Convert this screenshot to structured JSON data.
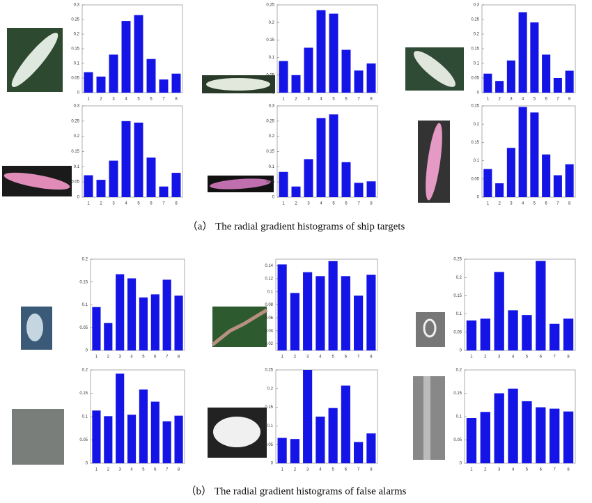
{
  "chart_data": [
    {
      "type": "bar",
      "categories": [
        "1",
        "2",
        "3",
        "4",
        "5",
        "6",
        "7",
        "8"
      ],
      "values": [
        0.07,
        0.055,
        0.13,
        0.245,
        0.265,
        0.115,
        0.045,
        0.065
      ],
      "color": "#1414e6",
      "ylim": [
        0,
        0.3
      ],
      "yticks": [
        0,
        0.05,
        0.1,
        0.15,
        0.2,
        0.25,
        0.3
      ]
    },
    {
      "type": "bar",
      "categories": [
        "1",
        "2",
        "3",
        "4",
        "5",
        "6",
        "7",
        "8"
      ],
      "values": [
        0.09,
        0.05,
        0.128,
        0.235,
        0.225,
        0.122,
        0.063,
        0.083
      ],
      "color": "#1414e6",
      "ylim": [
        0,
        0.25
      ],
      "yticks": [
        0,
        0.05,
        0.1,
        0.15,
        0.2,
        0.25
      ]
    },
    {
      "type": "bar",
      "categories": [
        "1",
        "2",
        "3",
        "4",
        "5",
        "6",
        "7",
        "8"
      ],
      "values": [
        0.065,
        0.04,
        0.11,
        0.275,
        0.24,
        0.13,
        0.05,
        0.075
      ],
      "color": "#1414e6",
      "ylim": [
        0,
        0.3
      ],
      "yticks": [
        0,
        0.05,
        0.1,
        0.15,
        0.2,
        0.25,
        0.3
      ]
    },
    {
      "type": "bar",
      "categories": [
        "1",
        "2",
        "3",
        "4",
        "5",
        "6",
        "7",
        "8"
      ],
      "values": [
        0.072,
        0.057,
        0.12,
        0.25,
        0.245,
        0.13,
        0.035,
        0.08
      ],
      "color": "#1414e6",
      "ylim": [
        0,
        0.3
      ],
      "yticks": [
        0,
        0.05,
        0.1,
        0.15,
        0.2,
        0.25,
        0.3
      ]
    },
    {
      "type": "bar",
      "categories": [
        "1",
        "2",
        "3",
        "4",
        "5",
        "6",
        "7",
        "8"
      ],
      "values": [
        0.083,
        0.035,
        0.125,
        0.26,
        0.272,
        0.115,
        0.047,
        0.052
      ],
      "color": "#1414e6",
      "ylim": [
        0,
        0.3
      ],
      "yticks": [
        0,
        0.05,
        0.1,
        0.15,
        0.2,
        0.25,
        0.3
      ]
    },
    {
      "type": "bar",
      "categories": [
        "1",
        "2",
        "3",
        "4",
        "5",
        "6",
        "7",
        "8"
      ],
      "values": [
        0.077,
        0.038,
        0.135,
        0.247,
        0.232,
        0.117,
        0.06,
        0.09
      ],
      "color": "#1414e6",
      "ylim": [
        0,
        0.25
      ],
      "yticks": [
        0,
        0.05,
        0.1,
        0.15,
        0.2,
        0.25
      ]
    },
    {
      "type": "bar",
      "categories": [
        "1",
        "2",
        "3",
        "4",
        "5",
        "6",
        "7",
        "8"
      ],
      "values": [
        0.095,
        0.06,
        0.167,
        0.158,
        0.116,
        0.123,
        0.155,
        0.12
      ],
      "color": "#1414e6",
      "ylim": [
        0,
        0.2
      ],
      "yticks": [
        0,
        0.05,
        0.1,
        0.15,
        0.2
      ]
    },
    {
      "type": "bar",
      "categories": [
        "1",
        "2",
        "3",
        "4",
        "5",
        "6",
        "7",
        "8"
      ],
      "values": [
        0.142,
        0.098,
        0.13,
        0.124,
        0.147,
        0.124,
        0.094,
        0.126
      ],
      "color": "#1414e6",
      "ylim": [
        0.01,
        0.15
      ],
      "yticks": [
        0.02,
        0.04,
        0.06,
        0.08,
        0.1,
        0.12,
        0.14
      ]
    },
    {
      "type": "bar",
      "categories": [
        "1",
        "2",
        "3",
        "4",
        "5",
        "6",
        "7",
        "8"
      ],
      "values": [
        0.082,
        0.087,
        0.215,
        0.11,
        0.097,
        0.245,
        0.073,
        0.087
      ],
      "color": "#1414e6",
      "ylim": [
        0,
        0.25
      ],
      "yticks": [
        0,
        0.05,
        0.1,
        0.15,
        0.2,
        0.25
      ]
    },
    {
      "type": "bar",
      "categories": [
        "1",
        "2",
        "3",
        "4",
        "5",
        "6",
        "7",
        "8"
      ],
      "values": [
        0.113,
        0.101,
        0.192,
        0.104,
        0.158,
        0.132,
        0.09,
        0.102
      ],
      "color": "#1414e6",
      "ylim": [
        0,
        0.2
      ],
      "yticks": [
        0,
        0.05,
        0.1,
        0.15,
        0.2
      ]
    },
    {
      "type": "bar",
      "categories": [
        "1",
        "2",
        "3",
        "4",
        "5",
        "6",
        "7",
        "8"
      ],
      "values": [
        0.068,
        0.065,
        0.25,
        0.125,
        0.148,
        0.208,
        0.057,
        0.08
      ],
      "color": "#1414e6",
      "ylim": [
        0,
        0.25
      ],
      "yticks": [
        0,
        0.05,
        0.1,
        0.15,
        0.2,
        0.25
      ]
    },
    {
      "type": "bar",
      "categories": [
        "1",
        "2",
        "3",
        "4",
        "5",
        "6",
        "7",
        "8"
      ],
      "values": [
        0.097,
        0.11,
        0.15,
        0.16,
        0.133,
        0.12,
        0.117,
        0.111
      ],
      "color": "#1414e6",
      "ylim": [
        0,
        0.2
      ],
      "yticks": [
        0,
        0.05,
        0.1,
        0.15,
        0.2
      ]
    }
  ],
  "captions": [
    "（a） The radial gradient histograms of ship targets",
    "（b） The radial gradient histograms of false alarms"
  ]
}
